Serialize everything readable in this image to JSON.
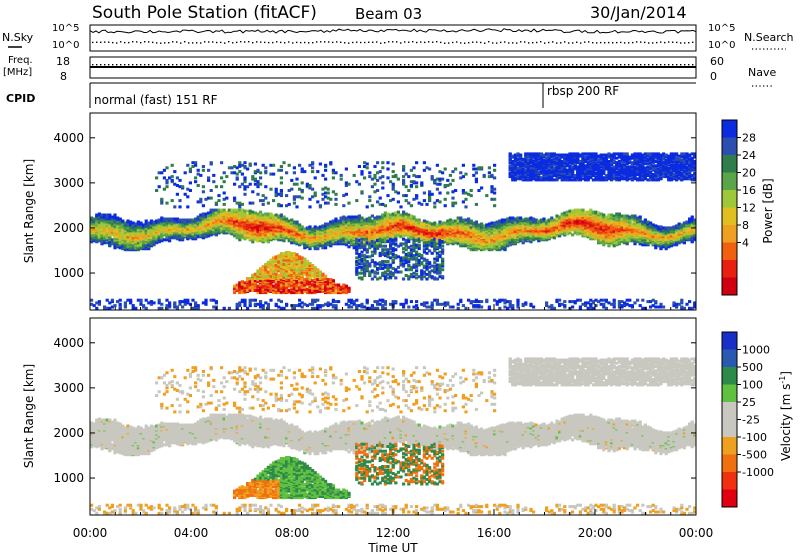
{
  "header": {
    "title": "South Pole Station (fitACF)",
    "beam": "Beam 03",
    "date": "30/Jan/2014"
  },
  "strips": {
    "sky_label": "N.Sky",
    "search_label": "N.Search",
    "sky_ticks": [
      "10^5",
      "10^0"
    ],
    "search_ticks": [
      "10^5",
      "10^0"
    ],
    "freq_label_1": "Freq.",
    "freq_label_2": "[MHz]",
    "freq_ticks": [
      "18",
      "8"
    ],
    "nave_label": "Nave",
    "nave_ticks": [
      "60",
      "0"
    ],
    "cpid_label": "CPID",
    "cpid_modes": [
      {
        "text": "normal (fast) 151 RF",
        "start_hour": 0
      },
      {
        "text": "rbsp 200 RF",
        "start_hour": 18
      }
    ]
  },
  "chart_data": [
    {
      "type": "heatmap",
      "name": "power",
      "ylabel": "Slant Range [km]",
      "xlabel": "",
      "x_range_hours": [
        0,
        24
      ],
      "ylim": [
        180,
        4550
      ],
      "y_ticks": [
        1000,
        2000,
        3000,
        4000
      ],
      "colorbar": {
        "label": "Power [dB]",
        "ticks": [
          "28",
          "24",
          "20",
          "16",
          "12",
          "8",
          "4"
        ],
        "colors": [
          "#0a2be0",
          "#2a4fb0",
          "#2e7d4a",
          "#5aa44a",
          "#9cc83a",
          "#e0c020",
          "#f0a020",
          "#f06010",
          "#e82010",
          "#d00010"
        ]
      }
    },
    {
      "type": "heatmap",
      "name": "velocity",
      "ylabel": "Slant Range [km]",
      "xlabel": "Time UT",
      "x_range_hours": [
        0,
        24
      ],
      "ylim": [
        180,
        4550
      ],
      "y_ticks": [
        1000,
        2000,
        3000,
        4000
      ],
      "x_ticks": [
        "00:00",
        "04:00",
        "08:00",
        "12:00",
        "16:00",
        "20:00",
        "00:00"
      ],
      "colorbar": {
        "label": "Velocity [m s^-1]",
        "ticks": [
          "1000",
          "500",
          "100",
          "25",
          "-25",
          "-100",
          "-500",
          "-1000"
        ],
        "colors": [
          "#1830c8",
          "#2a5ab0",
          "#2e8a48",
          "#60c040",
          "#c8c8c0",
          "#c8c8c0",
          "#f0a020",
          "#f07010",
          "#f03010",
          "#e00010"
        ]
      }
    }
  ]
}
